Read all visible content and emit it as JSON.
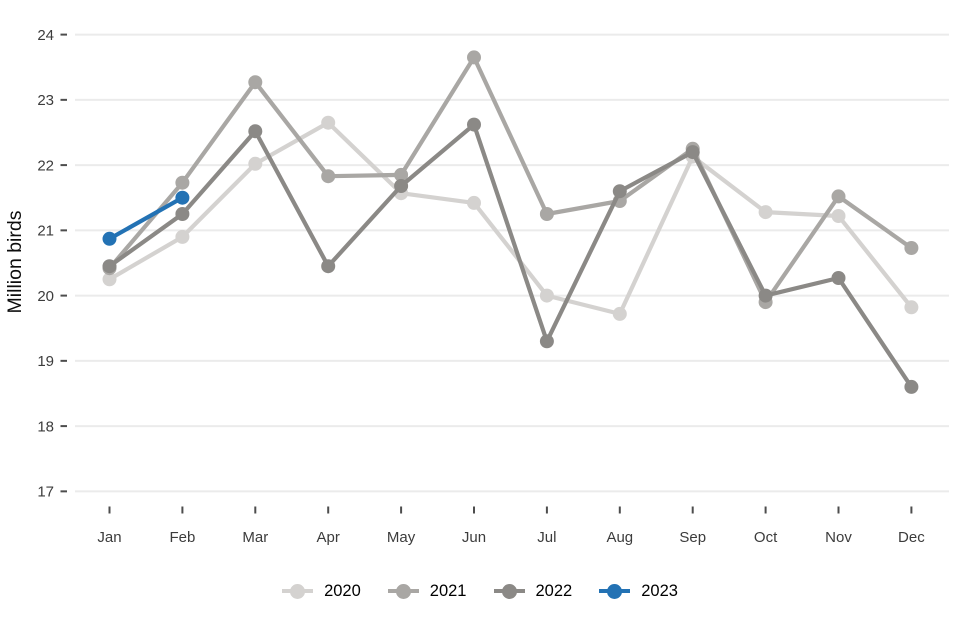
{
  "chart_data": {
    "type": "line",
    "title": "",
    "xlabel": "",
    "ylabel": "Million birds",
    "ylim": [
      17,
      24
    ],
    "yticks": [
      17,
      18,
      19,
      20,
      21,
      22,
      23,
      24
    ],
    "categories": [
      "Jan",
      "Feb",
      "Mar",
      "Apr",
      "May",
      "Jun",
      "Jul",
      "Aug",
      "Sep",
      "Oct",
      "Nov",
      "Dec"
    ],
    "grid": "horizontal-major-only",
    "legend_position": "bottom-center",
    "series": [
      {
        "name": "2020",
        "color": "#d4d2d0",
        "values": [
          20.25,
          20.9,
          22.02,
          22.65,
          21.57,
          21.42,
          20.0,
          19.72,
          22.13,
          21.28,
          21.22,
          19.82
        ]
      },
      {
        "name": "2021",
        "color": "#a9a7a4",
        "values": [
          20.42,
          21.73,
          23.27,
          21.83,
          21.85,
          23.65,
          21.25,
          21.45,
          22.25,
          19.9,
          21.52,
          20.73
        ]
      },
      {
        "name": "2022",
        "color": "#8b8986",
        "values": [
          20.45,
          21.25,
          22.52,
          20.45,
          21.68,
          22.62,
          19.3,
          21.6,
          22.2,
          20.0,
          20.27,
          18.6
        ]
      },
      {
        "name": "2023",
        "color": "#2372b4",
        "values": [
          20.87,
          21.5,
          null,
          null,
          null,
          null,
          null,
          null,
          null,
          null,
          null,
          null
        ]
      }
    ]
  },
  "colors": {
    "background": "#ffffff",
    "gridline": "#ebebeb",
    "tick_mark": "#4d4d4d",
    "axis_text": "#3c3c3c",
    "axis_title": "#0d0d0d"
  }
}
